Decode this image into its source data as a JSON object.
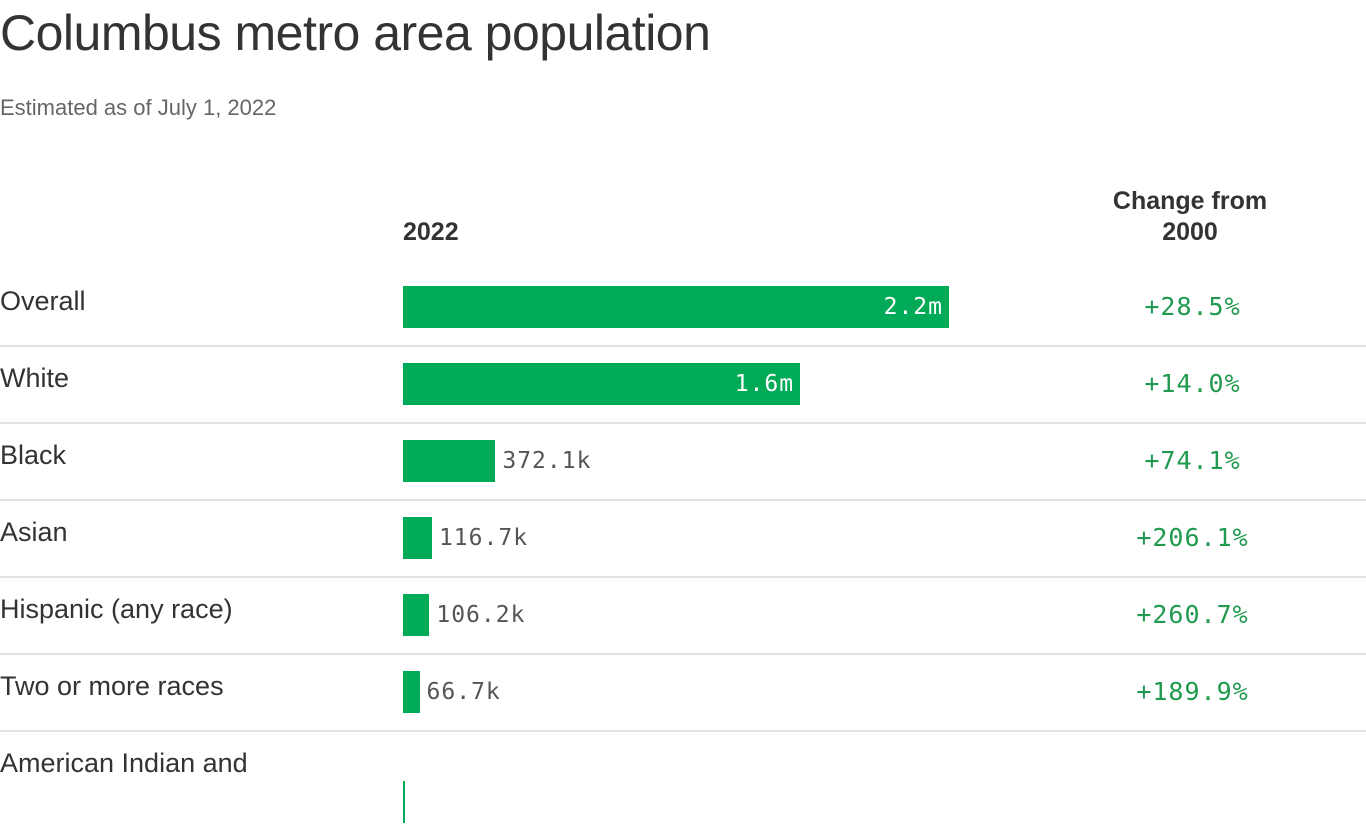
{
  "chart_data": {
    "type": "bar",
    "title": "Columbus metro area population",
    "subtitle": "Estimated as of July 1, 2022",
    "column_headers": {
      "value": "2022",
      "change": "Change from 2000"
    },
    "categories": [
      "Overall",
      "White",
      "Black",
      "Asian",
      "Hispanic (any race)",
      "Two or more races",
      "American Indian and"
    ],
    "values": [
      2200000,
      1600000,
      372100,
      116700,
      106200,
      66700,
      5000
    ],
    "value_labels": [
      "2.2m",
      "1.6m",
      "372.1k",
      "116.7k",
      "106.2k",
      "66.7k",
      ""
    ],
    "changes": [
      "+28.5%",
      "+14.0%",
      "+74.1%",
      "+206.1%",
      "+260.7%",
      "+189.9%",
      ""
    ],
    "orientation": "horizontal",
    "xlim": [
      0,
      2200000
    ],
    "grid": false,
    "colors": {
      "bar": "#00aa57",
      "change_text": "#1f9a4e"
    }
  }
}
